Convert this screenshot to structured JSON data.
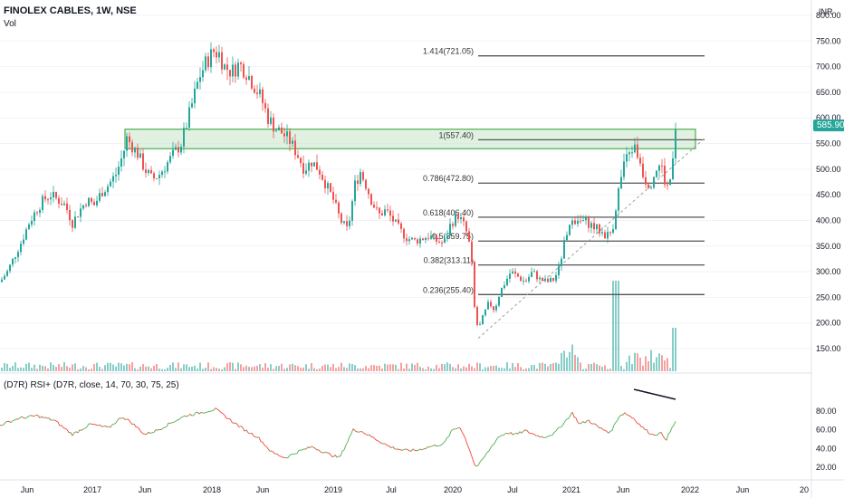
{
  "header": {
    "symbol_line": "FINOLEX CABLES, 1W, NSE",
    "volume_label": "Vol",
    "currency": "INR"
  },
  "rsi_panel": {
    "label": "(D7R) RSI+ (D7R, close, 14, 70, 30, 75, 25)",
    "y_ticks": [
      "80.00",
      "60.00",
      "40.00",
      "20.00"
    ],
    "y_tick_values": [
      80,
      60,
      40,
      20
    ]
  },
  "price_axis": {
    "ticks": [
      "800.00",
      "750.00",
      "700.00",
      "650.00",
      "600.00",
      "550.00",
      "500.00",
      "450.00",
      "400.00",
      "350.00",
      "300.00",
      "250.00",
      "200.00",
      "150.00"
    ],
    "tick_values": [
      800,
      750,
      700,
      650,
      600,
      550,
      500,
      450,
      400,
      350,
      300,
      250,
      200,
      150
    ],
    "last_price": "585.90",
    "last_price_value": 585.9
  },
  "x_axis": {
    "labels": [
      "Jun",
      "2017",
      "Jun",
      "2018",
      "Jun",
      "2019",
      "Jul",
      "2020",
      "Jul",
      "2021",
      "Jun",
      "2022",
      "Jun",
      "20"
    ]
  },
  "colors": {
    "up": "#26a69a",
    "down": "#ef5350",
    "zone_fill": "#c8e6c9",
    "zone_stroke": "#4caf50",
    "fib_line": "#555555",
    "price_tag": "#26a69a",
    "rsi_up": "#4caf50",
    "rsi_down": "#f44336"
  },
  "chart_data": {
    "type": "candlestick",
    "title": "FINOLEX CABLES, 1W, NSE",
    "ylim": [
      140,
      810
    ],
    "fib_levels": [
      {
        "label": "1.414(721.05)",
        "value": 721.05
      },
      {
        "label": "1(557.40)",
        "value": 557.4
      },
      {
        "label": "0.786(472.80)",
        "value": 472.8
      },
      {
        "label": "0.618(406.40)",
        "value": 406.4
      },
      {
        "label": "0.5(359.75)",
        "value": 359.75
      },
      {
        "label": "0.382(313.11)",
        "value": 313.11
      },
      {
        "label": "0.236(255.40)",
        "value": 255.4
      }
    ],
    "supply_zone": [
      540,
      578
    ],
    "close_path": [
      [
        0,
        280
      ],
      [
        8,
        300
      ],
      [
        16,
        330
      ],
      [
        24,
        360
      ],
      [
        32,
        395
      ],
      [
        40,
        420
      ],
      [
        48,
        440
      ],
      [
        56,
        450
      ],
      [
        64,
        440
      ],
      [
        72,
        430
      ],
      [
        80,
        395
      ],
      [
        88,
        420
      ],
      [
        96,
        440
      ],
      [
        104,
        430
      ],
      [
        112,
        455
      ],
      [
        120,
        470
      ],
      [
        128,
        490
      ],
      [
        136,
        530
      ],
      [
        140,
        560
      ],
      [
        146,
        545
      ],
      [
        152,
        530
      ],
      [
        160,
        500
      ],
      [
        168,
        480
      ],
      [
        176,
        490
      ],
      [
        184,
        510
      ],
      [
        192,
        530
      ],
      [
        200,
        550
      ],
      [
        208,
        600
      ],
      [
        214,
        640
      ],
      [
        220,
        680
      ],
      [
        228,
        710
      ],
      [
        236,
        730
      ],
      [
        242,
        725
      ],
      [
        248,
        700
      ],
      [
        256,
        690
      ],
      [
        264,
        705
      ],
      [
        272,
        690
      ],
      [
        280,
        665
      ],
      [
        288,
        640
      ],
      [
        296,
        600
      ],
      [
        304,
        580
      ],
      [
        312,
        570
      ],
      [
        320,
        555
      ],
      [
        328,
        530
      ],
      [
        336,
        500
      ],
      [
        344,
        515
      ],
      [
        352,
        500
      ],
      [
        360,
        470
      ],
      [
        368,
        440
      ],
      [
        376,
        400
      ],
      [
        384,
        380
      ],
      [
        392,
        470
      ],
      [
        398,
        495
      ],
      [
        404,
        470
      ],
      [
        410,
        440
      ],
      [
        418,
        410
      ],
      [
        426,
        420
      ],
      [
        434,
        400
      ],
      [
        442,
        380
      ],
      [
        450,
        365
      ],
      [
        458,
        360
      ],
      [
        466,
        365
      ],
      [
        474,
        370
      ],
      [
        482,
        360
      ],
      [
        490,
        355
      ],
      [
        498,
        395
      ],
      [
        506,
        410
      ],
      [
        514,
        385
      ],
      [
        520,
        340
      ],
      [
        524,
        230
      ],
      [
        528,
        185
      ],
      [
        534,
        215
      ],
      [
        540,
        240
      ],
      [
        546,
        225
      ],
      [
        552,
        260
      ],
      [
        558,
        280
      ],
      [
        564,
        300
      ],
      [
        572,
        290
      ],
      [
        580,
        280
      ],
      [
        588,
        300
      ],
      [
        596,
        285
      ],
      [
        604,
        280
      ],
      [
        612,
        285
      ],
      [
        618,
        310
      ],
      [
        622,
        350
      ],
      [
        628,
        375
      ],
      [
        632,
        410
      ],
      [
        638,
        395
      ],
      [
        646,
        400
      ],
      [
        654,
        390
      ],
      [
        662,
        380
      ],
      [
        670,
        370
      ],
      [
        676,
        380
      ],
      [
        682,
        450
      ],
      [
        688,
        500
      ],
      [
        694,
        530
      ],
      [
        700,
        545
      ],
      [
        706,
        520
      ],
      [
        712,
        480
      ],
      [
        718,
        470
      ],
      [
        724,
        500
      ],
      [
        730,
        510
      ],
      [
        736,
        460
      ],
      [
        740,
        480
      ],
      [
        746,
        586
      ]
    ],
    "rsi_path": [
      [
        0,
        65
      ],
      [
        20,
        72
      ],
      [
        40,
        75
      ],
      [
        60,
        70
      ],
      [
        80,
        55
      ],
      [
        100,
        66
      ],
      [
        120,
        62
      ],
      [
        135,
        74
      ],
      [
        145,
        68
      ],
      [
        160,
        55
      ],
      [
        175,
        60
      ],
      [
        190,
        68
      ],
      [
        205,
        75
      ],
      [
        220,
        78
      ],
      [
        238,
        82
      ],
      [
        255,
        70
      ],
      [
        270,
        60
      ],
      [
        285,
        52
      ],
      [
        300,
        36
      ],
      [
        315,
        30
      ],
      [
        330,
        37
      ],
      [
        345,
        42
      ],
      [
        360,
        35
      ],
      [
        375,
        30
      ],
      [
        390,
        60
      ],
      [
        400,
        58
      ],
      [
        415,
        50
      ],
      [
        430,
        42
      ],
      [
        445,
        38
      ],
      [
        460,
        38
      ],
      [
        475,
        42
      ],
      [
        490,
        45
      ],
      [
        500,
        60
      ],
      [
        508,
        63
      ],
      [
        515,
        48
      ],
      [
        520,
        35
      ],
      [
        525,
        20
      ],
      [
        530,
        24
      ],
      [
        540,
        38
      ],
      [
        550,
        52
      ],
      [
        560,
        57
      ],
      [
        570,
        55
      ],
      [
        580,
        59
      ],
      [
        590,
        55
      ],
      [
        600,
        52
      ],
      [
        612,
        56
      ],
      [
        625,
        70
      ],
      [
        632,
        78
      ],
      [
        640,
        66
      ],
      [
        650,
        70
      ],
      [
        662,
        62
      ],
      [
        674,
        57
      ],
      [
        684,
        75
      ],
      [
        690,
        78
      ],
      [
        700,
        72
      ],
      [
        710,
        62
      ],
      [
        720,
        55
      ],
      [
        730,
        56
      ],
      [
        736,
        50
      ],
      [
        746,
        69
      ]
    ]
  }
}
